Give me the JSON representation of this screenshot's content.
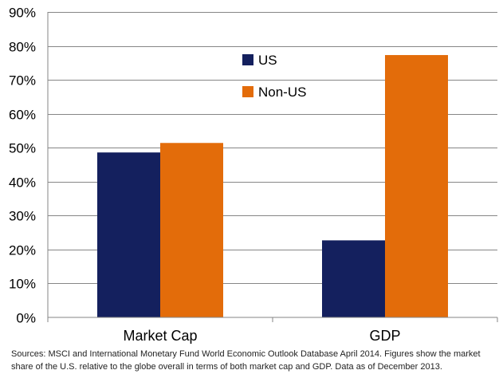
{
  "chart_data": {
    "type": "bar",
    "categories": [
      "Market Cap",
      "GDP"
    ],
    "series": [
      {
        "name": "US",
        "values": [
          48.6,
          22.7
        ],
        "color": "#14205e"
      },
      {
        "name": "Non-US",
        "values": [
          51.4,
          77.3
        ],
        "color": "#e36c0a"
      }
    ],
    "ylim": [
      0,
      90
    ],
    "yticks": [
      "0%",
      "10%",
      "20%",
      "30%",
      "40%",
      "50%",
      "60%",
      "70%",
      "80%",
      "90%"
    ],
    "ytick_values": [
      0,
      10,
      20,
      30,
      40,
      50,
      60,
      70,
      80,
      90
    ],
    "grid": true,
    "legend_position": "top-center"
  },
  "source_note": "Sources: MSCI and International Monetary Fund World Economic Outlook Database April 2014. Figures show the market share of the U.S. relative to the  globe overall in terms of both market cap and GDP. Data as of December 2013."
}
